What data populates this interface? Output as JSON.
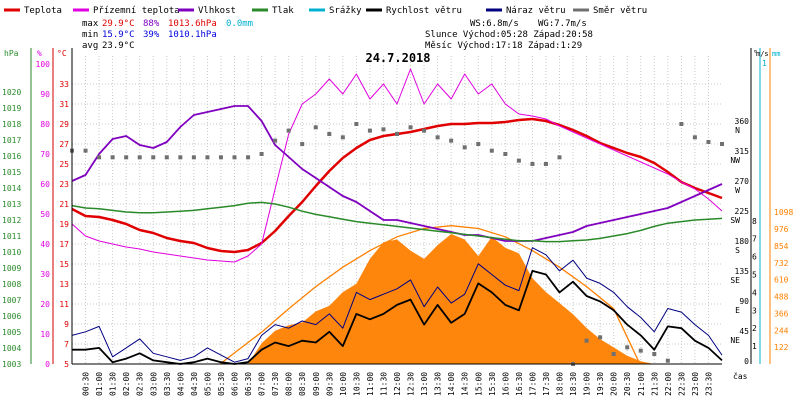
{
  "chart_data": {
    "type": "line",
    "title": "24.7.2018",
    "legend": [
      {
        "name": "Teplota",
        "color": "#e00000"
      },
      {
        "name": "Přízemní teplota",
        "color": "#e000e0"
      },
      {
        "name": "Vlhkost",
        "color": "#8000c0"
      },
      {
        "name": "Tlak",
        "color": "#2a8a2a"
      },
      {
        "name": "Srážky",
        "color": "#00b0d0"
      },
      {
        "name": "Rychlost větru",
        "color": "#000000"
      },
      {
        "name": "Náraz větru",
        "color": "#000080"
      },
      {
        "name": "Směr větru",
        "color": "#707070"
      }
    ],
    "stats": {
      "max_label": "max",
      "min_label": "min",
      "avg_label": "avg",
      "max_temp": "29.9°C",
      "max_hum": "88%",
      "max_press": "1013.6hPa",
      "max_rain": "0.0mm",
      "min_temp": "15.9°C",
      "min_hum": "39%",
      "min_press": "1010.1hPa",
      "avg_temp": "23.9°C",
      "ws": "WS:6.8m/s",
      "wg": "WG:7.7m/s",
      "slunce": "Slunce Východ:05:28   Západ:20:58",
      "mesic": "Měsíc  Východ:17:18   Západ:1:29"
    },
    "axes": {
      "hpa_label": "hPa",
      "pct_label": "%",
      "c_label": "°C",
      "deg_label": "°",
      "ms_label": "m/s",
      "mm_label": "mm",
      "hpa": [
        "1020",
        "1019",
        "1018",
        "1017",
        "1016",
        "1015",
        "1014",
        "1013",
        "1012",
        "1011",
        "1010",
        "1009",
        "1008",
        "1007",
        "1006",
        "1005",
        "1004",
        "1003"
      ],
      "pct": [
        "100",
        "90",
        "80",
        "70",
        "60",
        "50",
        "40",
        "30",
        "20",
        "10",
        "0"
      ],
      "c": [
        "33",
        "31",
        "29",
        "27",
        "25",
        "23",
        "21",
        "19",
        "17",
        "15",
        "13",
        "11",
        "9",
        "7",
        "5"
      ],
      "dir": [
        {
          "v": "360",
          "s": "N"
        },
        {
          "v": "315",
          "s": "NW"
        },
        {
          "v": "270",
          "s": "W"
        },
        {
          "v": "225",
          "s": "SW"
        },
        {
          "v": "180",
          "s": "S"
        },
        {
          "v": "135",
          "s": "SE"
        },
        {
          "v": "90",
          "s": "E"
        },
        {
          "v": "45",
          "s": "NE"
        },
        {
          "v": "0",
          "s": ""
        }
      ],
      "ms": [
        "8",
        "7",
        "6",
        "5",
        "4",
        "3",
        "2",
        "1"
      ],
      "ms_top": "1",
      "rad": [
        "1098",
        "976",
        "854",
        "732",
        "610",
        "488",
        "366",
        "244",
        "122"
      ],
      "x_label": "čas",
      "x_ticks": [
        "00:30",
        "01:00",
        "01:30",
        "02:00",
        "02:30",
        "03:00",
        "03:30",
        "04:00",
        "04:30",
        "05:00",
        "05:30",
        "06:00",
        "06:30",
        "07:00",
        "07:30",
        "08:00",
        "08:30",
        "09:00",
        "09:30",
        "10:00",
        "10:30",
        "11:00",
        "11:30",
        "12:00",
        "12:30",
        "13:00",
        "13:30",
        "14:00",
        "14:30",
        "15:00",
        "15:30",
        "16:00",
        "16:30",
        "17:00",
        "17:30",
        "18:00",
        "18:30",
        "19:00",
        "19:30",
        "20:00",
        "20:30",
        "21:00",
        "21:30",
        "22:00",
        "22:30",
        "23:00",
        "23:30"
      ]
    },
    "xlim": [
      0,
      24
    ],
    "series": [
      {
        "name": "Teplota",
        "color": "#e00000",
        "unit": "°C",
        "x": [
          0,
          0.5,
          1,
          1.5,
          2,
          2.5,
          3,
          3.5,
          4,
          4.5,
          5,
          5.5,
          6,
          6.5,
          7,
          7.5,
          8,
          8.5,
          9,
          9.5,
          10,
          10.5,
          11,
          11.5,
          12,
          12.5,
          13,
          13.5,
          14,
          14.5,
          15,
          15.5,
          16,
          16.5,
          17,
          17.5,
          18,
          18.5,
          19,
          19.5,
          20,
          20.5,
          21,
          21.5,
          22,
          22.5,
          23,
          23.5,
          24
        ],
        "y": [
          20.5,
          19.8,
          19.7,
          19.4,
          19.0,
          18.4,
          18.1,
          17.6,
          17.3,
          17.1,
          16.6,
          16.3,
          16.2,
          16.4,
          17.1,
          18.3,
          19.8,
          21.2,
          22.8,
          24.3,
          25.6,
          26.6,
          27.4,
          27.8,
          28.0,
          28.2,
          28.5,
          28.8,
          29.0,
          29.0,
          29.1,
          29.1,
          29.2,
          29.4,
          29.5,
          29.3,
          28.9,
          28.4,
          27.8,
          27.1,
          26.6,
          26.1,
          25.7,
          25.1,
          24.2,
          23.2,
          22.6,
          22.1,
          21.6
        ]
      },
      {
        "name": "Přízemní teplota",
        "color": "#e000e0",
        "unit": "°C",
        "x": [
          0,
          0.5,
          1,
          1.5,
          2,
          2.5,
          3,
          3.5,
          4,
          4.5,
          5,
          5.5,
          6,
          6.5,
          7,
          7.5,
          8,
          8.5,
          9,
          9.5,
          10,
          10.5,
          11,
          11.5,
          12,
          12.5,
          13,
          13.5,
          14,
          14.5,
          15,
          15.5,
          16,
          16.5,
          17,
          17.5,
          18,
          18.5,
          19,
          19.5,
          20,
          20.5,
          21,
          21.5,
          22,
          22.5,
          23,
          23.5,
          24
        ],
        "y": [
          19.0,
          17.8,
          17.3,
          17.0,
          16.7,
          16.5,
          16.2,
          16.0,
          15.8,
          15.6,
          15.4,
          15.3,
          15.2,
          15.8,
          17.0,
          22.5,
          28.0,
          31.0,
          32.0,
          33.5,
          32.0,
          34.0,
          31.5,
          33.0,
          31.0,
          34.5,
          31.0,
          33.0,
          31.5,
          34.0,
          32.0,
          33.0,
          31.0,
          30.0,
          29.8,
          29.5,
          28.8,
          28.2,
          27.6,
          27.0,
          26.4,
          25.8,
          25.2,
          24.6,
          24.0,
          23.2,
          22.5,
          21.5,
          20.3
        ]
      },
      {
        "name": "Vlhkost",
        "color": "#8000c0",
        "unit": "%",
        "x": [
          0,
          0.5,
          1,
          1.5,
          2,
          2.5,
          3,
          3.5,
          4,
          4.5,
          5,
          5.5,
          6,
          6.5,
          7,
          7.5,
          8,
          8.5,
          9,
          9.5,
          10,
          10.5,
          11,
          11.5,
          12,
          12.5,
          13,
          13.5,
          14,
          14.5,
          15,
          15.5,
          16,
          16.5,
          17,
          17.5,
          18,
          18.5,
          19,
          19.5,
          20,
          20.5,
          21,
          21.5,
          22,
          22.5,
          23,
          23.5,
          24
        ],
        "y": [
          61,
          63,
          70,
          75,
          76,
          73,
          72,
          74,
          79,
          83,
          84,
          85,
          86,
          86,
          81,
          73,
          69,
          65,
          62,
          59,
          56,
          54,
          51,
          48,
          48,
          47,
          46,
          45,
          44,
          43,
          43,
          42,
          41,
          41,
          41,
          42,
          43,
          44,
          46,
          47,
          48,
          49,
          50,
          51,
          52,
          54,
          56,
          58,
          60
        ]
      },
      {
        "name": "Tlak",
        "color": "#2a8a2a",
        "unit": "hPa",
        "x": [
          0,
          0.5,
          1,
          1.5,
          2,
          2.5,
          3,
          3.5,
          4,
          4.5,
          5,
          5.5,
          6,
          6.5,
          7,
          7.5,
          8,
          8.5,
          9,
          9.5,
          10,
          10.5,
          11,
          11.5,
          12,
          12.5,
          13,
          13.5,
          14,
          14.5,
          15,
          15.5,
          16,
          16.5,
          17,
          17.5,
          18,
          18.5,
          19,
          19.5,
          20,
          20.5,
          21,
          21.5,
          22,
          22.5,
          23,
          23.5,
          24
        ],
        "y": [
          1012.9,
          1012.75,
          1012.7,
          1012.6,
          1012.5,
          1012.45,
          1012.45,
          1012.5,
          1012.55,
          1012.6,
          1012.7,
          1012.8,
          1012.9,
          1013.05,
          1013.1,
          1013.0,
          1012.8,
          1012.55,
          1012.35,
          1012.2,
          1012.05,
          1011.9,
          1011.8,
          1011.7,
          1011.6,
          1011.5,
          1011.4,
          1011.3,
          1011.2,
          1011.1,
          1011.0,
          1010.9,
          1010.8,
          1010.7,
          1010.7,
          1010.65,
          1010.65,
          1010.7,
          1010.75,
          1010.85,
          1011.0,
          1011.15,
          1011.35,
          1011.6,
          1011.8,
          1011.9,
          1012.0,
          1012.05,
          1012.1
        ]
      },
      {
        "name": "Rychlost větru",
        "color": "#000000",
        "unit": "m/s",
        "x": [
          0,
          0.5,
          1,
          1.5,
          2,
          2.5,
          3,
          3.5,
          4,
          4.5,
          5,
          5.5,
          6,
          6.5,
          7,
          7.5,
          8,
          8.5,
          9,
          9.5,
          10,
          10.5,
          11,
          11.5,
          12,
          12.5,
          13,
          13.5,
          14,
          14.5,
          15,
          15.5,
          16,
          16.5,
          17,
          17.5,
          18,
          18.5,
          19,
          19.5,
          20,
          20.5,
          21,
          21.5,
          22,
          22.5,
          23,
          23.5,
          24
        ],
        "y": [
          0.8,
          0.8,
          0.9,
          0.1,
          0.3,
          0.6,
          0.2,
          0.1,
          0.0,
          0.1,
          0.3,
          0.1,
          0.0,
          0.1,
          0.8,
          1.2,
          1.0,
          1.3,
          1.2,
          1.8,
          1.0,
          2.8,
          2.5,
          2.8,
          3.3,
          3.6,
          2.2,
          3.3,
          2.3,
          2.8,
          4.5,
          4.0,
          3.3,
          3.0,
          5.2,
          5.0,
          4.0,
          4.6,
          3.8,
          3.5,
          3.0,
          2.2,
          1.6,
          0.8,
          2.1,
          2.0,
          1.3,
          0.9,
          0.2
        ]
      },
      {
        "name": "Náraz větru",
        "color": "#000080",
        "unit": "m/s",
        "x": [
          0,
          0.5,
          1,
          1.5,
          2,
          2.5,
          3,
          3.5,
          4,
          4.5,
          5,
          5.5,
          6,
          6.5,
          7,
          7.5,
          8,
          8.5,
          9,
          9.5,
          10,
          10.5,
          11,
          11.5,
          12,
          12.5,
          13,
          13.5,
          14,
          14.5,
          15,
          15.5,
          16,
          16.5,
          17,
          17.5,
          18,
          18.5,
          19,
          19.5,
          20,
          20.5,
          21,
          21.5,
          22,
          22.5,
          23,
          23.5,
          24
        ],
        "y": [
          1.6,
          1.8,
          2.1,
          0.4,
          0.9,
          1.4,
          0.6,
          0.4,
          0.2,
          0.4,
          0.9,
          0.5,
          0.1,
          0.3,
          1.6,
          2.2,
          2.0,
          2.4,
          2.2,
          2.8,
          2.0,
          4.0,
          3.6,
          3.9,
          4.2,
          4.7,
          3.2,
          4.3,
          3.4,
          3.9,
          5.6,
          5.0,
          4.4,
          4.1,
          6.5,
          6.1,
          5.2,
          5.8,
          4.8,
          4.5,
          4.0,
          3.2,
          2.6,
          1.8,
          3.1,
          2.9,
          2.2,
          1.6,
          0.5
        ]
      },
      {
        "name": "Směr větru",
        "color": "#707070",
        "unit": "°",
        "x": [
          0,
          0.5,
          1,
          1.5,
          2,
          2.5,
          3,
          3.5,
          4,
          4.5,
          5,
          5.5,
          6,
          6.5,
          7,
          7.5,
          8,
          8.5,
          9,
          9.5,
          10,
          10.5,
          11,
          11.5,
          12,
          12.5,
          13,
          13.5,
          14,
          14.5,
          15,
          15.5,
          16,
          16.5,
          17,
          17.5,
          18,
          18.5,
          19,
          19.5,
          20,
          20.5,
          21,
          21.5,
          22,
          22.5,
          23,
          23.5,
          24
        ],
        "y": [
          320,
          320,
          310,
          310,
          310,
          310,
          310,
          310,
          310,
          310,
          310,
          310,
          310,
          310,
          315,
          335,
          350,
          330,
          355,
          345,
          340,
          360,
          350,
          352,
          345,
          355,
          350,
          340,
          335,
          325,
          330,
          320,
          315,
          305,
          300,
          300,
          310,
          0,
          35,
          40,
          15,
          25,
          20,
          15,
          5,
          360,
          340,
          333,
          330
        ]
      },
      {
        "name": "Sluneční záření",
        "color": "#ff8000",
        "unit": "W/m²",
        "x": [
          0,
          0.5,
          1,
          1.5,
          2,
          2.5,
          3,
          3.5,
          4,
          4.5,
          5,
          5.5,
          6,
          6.5,
          7,
          7.5,
          8,
          8.5,
          9,
          9.5,
          10,
          10.5,
          11,
          11.5,
          12,
          12.5,
          13,
          13.5,
          14,
          14.5,
          15,
          15.5,
          16,
          16.5,
          17,
          17.5,
          18,
          18.5,
          19,
          19.5,
          20,
          20.5,
          21,
          21.5,
          22,
          22.5,
          23,
          23.5,
          24
        ],
        "y": [
          0,
          0,
          0,
          0,
          0,
          0,
          0,
          0,
          0,
          0,
          0,
          0,
          0,
          0,
          150,
          240,
          280,
          300,
          380,
          420,
          520,
          580,
          760,
          880,
          900,
          820,
          760,
          860,
          940,
          900,
          780,
          920,
          840,
          800,
          620,
          520,
          440,
          360,
          260,
          180,
          120,
          60,
          20,
          0,
          0,
          0,
          0,
          0,
          0
        ]
      },
      {
        "name": "Teoretické záření",
        "color": "#ff8000",
        "unit": "W/m²",
        "x": [
          5.47,
          6,
          7,
          8,
          9,
          10,
          11,
          12,
          13,
          14,
          15,
          16,
          17,
          18,
          19,
          20,
          20.97
        ],
        "y": [
          0,
          80,
          230,
          400,
          560,
          700,
          820,
          920,
          980,
          1000,
          980,
          920,
          820,
          700,
          560,
          400,
          0
        ]
      }
    ]
  }
}
